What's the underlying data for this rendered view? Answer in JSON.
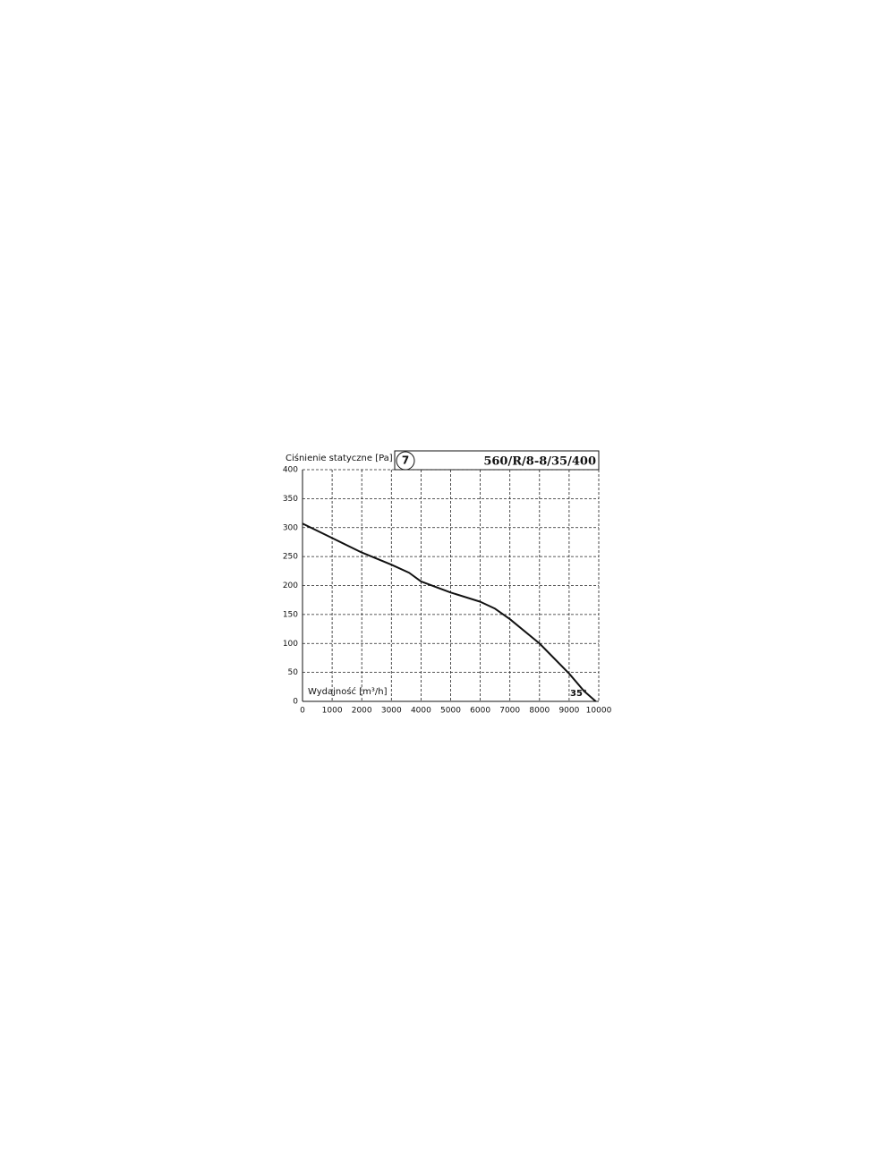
{
  "chart_data": {
    "type": "line",
    "title": "Ciśnienie statyczne [Pa]",
    "badge": "7",
    "model": "560/R/8-8/35/400",
    "x_label": "Wydajność [m³/h]",
    "annotation": "35°",
    "x": [
      0,
      1000,
      2000,
      3000,
      3600,
      4000,
      5000,
      6000,
      6500,
      7000,
      8000,
      9000,
      9500,
      9900
    ],
    "values": [
      307,
      282,
      257,
      236,
      222,
      207,
      188,
      172,
      160,
      142,
      100,
      48,
      18,
      0
    ],
    "color": "#111111",
    "xlim": [
      0,
      10000
    ],
    "xticks": [
      0,
      1000,
      2000,
      3000,
      4000,
      5000,
      6000,
      7000,
      8000,
      9000,
      10000
    ],
    "ylim": [
      0,
      400
    ],
    "yticks": [
      0,
      50,
      100,
      150,
      200,
      250,
      300,
      350,
      400
    ],
    "grid": true
  }
}
